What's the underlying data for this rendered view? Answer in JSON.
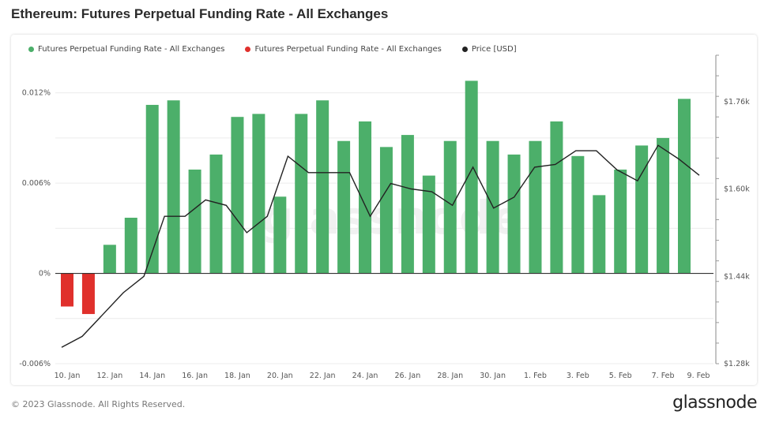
{
  "title": "Ethereum: Futures Perpetual Funding Rate - All Exchanges",
  "footer": "© 2023 Glassnode. All Rights Reserved.",
  "brand": "glassnode",
  "watermark": "glassnode",
  "legend": [
    {
      "label": "Futures Perpetual Funding Rate - All Exchanges",
      "color": "#4caf6a"
    },
    {
      "label": "Futures Perpetual Funding Rate - All Exchanges",
      "color": "#e0302c"
    },
    {
      "label": "Price [USD]",
      "color": "#222222"
    }
  ],
  "chart_data": {
    "type": "bar",
    "x_tick_labels": [
      "10. Jan",
      "12. Jan",
      "14. Jan",
      "16. Jan",
      "18. Jan",
      "20. Jan",
      "22. Jan",
      "24. Jan",
      "26. Jan",
      "28. Jan",
      "30. Jan",
      "1. Feb",
      "3. Feb",
      "5. Feb",
      "7. Feb",
      "9. Feb"
    ],
    "y_left_ticks": [
      "0.012%",
      "0.006%",
      "0%",
      "-0.006%"
    ],
    "y_left_range": [
      -0.006,
      0.0145
    ],
    "y_right_ticks": [
      "$1.76k",
      "$1.60k",
      "$1.44k",
      "$1.28k"
    ],
    "y_right_range": [
      1280,
      1845
    ],
    "positive_color": "#4caf6a",
    "negative_color": "#e0302c",
    "price_color": "#222222",
    "funding_rate_pct": [
      -0.0022,
      -0.0027,
      0.0019,
      0.0037,
      0.0112,
      0.0115,
      0.0069,
      0.0079,
      0.0104,
      0.0106,
      0.0051,
      0.0106,
      0.0115,
      0.0088,
      0.0101,
      0.0084,
      0.0092,
      0.0065,
      0.0088,
      0.0128,
      0.0088,
      0.0079,
      0.0088,
      0.0101,
      0.0078,
      0.0052,
      0.0069,
      0.0085,
      0.009,
      0.0116
    ],
    "price_usd": [
      1310,
      1330,
      1370,
      1410,
      1440,
      1550,
      1550,
      1580,
      1570,
      1520,
      1550,
      1660,
      1630,
      1630,
      1630,
      1550,
      1610,
      1600,
      1595,
      1570,
      1640,
      1565,
      1585,
      1640,
      1645,
      1670,
      1670,
      1635,
      1615,
      1680,
      1655,
      1625
    ]
  }
}
